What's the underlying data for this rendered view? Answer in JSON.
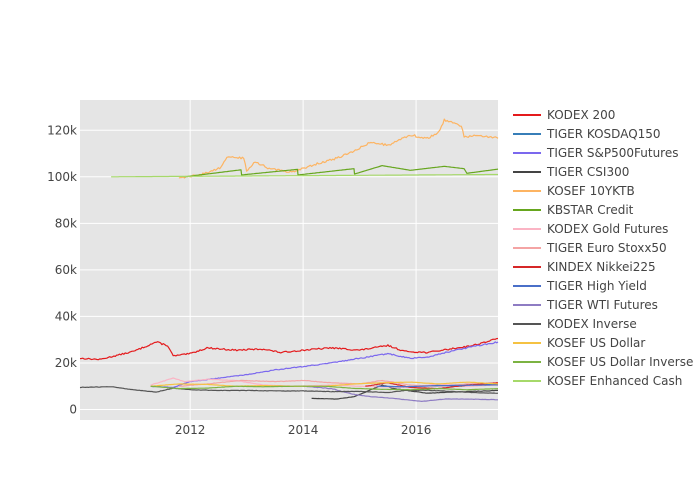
{
  "chart_data": {
    "type": "line",
    "title": "",
    "xlabel": "",
    "ylabel": "",
    "x_range": [
      2010.05,
      2017.45
    ],
    "ylim": [
      -4500,
      133000
    ],
    "x_ticks": [
      {
        "value": 2012,
        "label": "2012"
      },
      {
        "value": 2014,
        "label": "2014"
      },
      {
        "value": 2016,
        "label": "2016"
      }
    ],
    "y_ticks": [
      {
        "value": 0,
        "label": "0"
      },
      {
        "value": 20000,
        "label": "20k"
      },
      {
        "value": 40000,
        "label": "40k"
      },
      {
        "value": 60000,
        "label": "60k"
      },
      {
        "value": 80000,
        "label": "80k"
      },
      {
        "value": 100000,
        "label": "100k"
      },
      {
        "value": 120000,
        "label": "120k"
      }
    ],
    "grid": true,
    "legend_position": "right",
    "plot_background": "#e5e5e5",
    "series": [
      {
        "name": "KODEX 200",
        "color": "#e41a1c",
        "noise": 0.012,
        "points": [
          [
            2010.05,
            22000
          ],
          [
            2010.4,
            21500
          ],
          [
            2011.0,
            25000
          ],
          [
            2011.4,
            29000
          ],
          [
            2011.6,
            27500
          ],
          [
            2011.7,
            23000
          ],
          [
            2012.0,
            24000
          ],
          [
            2012.3,
            26500
          ],
          [
            2012.8,
            25500
          ],
          [
            2013.3,
            26000
          ],
          [
            2013.6,
            24500
          ],
          [
            2014.0,
            25500
          ],
          [
            2014.5,
            26500
          ],
          [
            2015.0,
            25500
          ],
          [
            2015.5,
            27500
          ],
          [
            2015.8,
            25000
          ],
          [
            2016.2,
            24500
          ],
          [
            2016.6,
            26000
          ],
          [
            2017.0,
            27500
          ],
          [
            2017.45,
            30500
          ]
        ]
      },
      {
        "name": "TIGER KOSDAQ150",
        "color": "#377eb8",
        "noise": 0.004,
        "points": [
          [
            2015.4,
            10000
          ],
          [
            2015.8,
            9500
          ],
          [
            2016.3,
            10500
          ],
          [
            2016.8,
            10000
          ],
          [
            2017.45,
            11000
          ]
        ]
      },
      {
        "name": "TIGER S&P500Futures",
        "color": "#7b68ee",
        "noise": 0.01,
        "points": [
          [
            2011.3,
            10000
          ],
          [
            2011.7,
            9500
          ],
          [
            2012.0,
            12000
          ],
          [
            2012.5,
            13500
          ],
          [
            2013.0,
            15000
          ],
          [
            2013.5,
            17000
          ],
          [
            2014.0,
            18500
          ],
          [
            2014.5,
            20000
          ],
          [
            2015.0,
            22000
          ],
          [
            2015.5,
            24000
          ],
          [
            2015.9,
            22000
          ],
          [
            2016.2,
            22500
          ],
          [
            2016.6,
            25000
          ],
          [
            2017.0,
            27000
          ],
          [
            2017.45,
            29000
          ]
        ]
      },
      {
        "name": "TIGER CSI300",
        "color": "#444444",
        "noise": 0.012,
        "points": [
          [
            2014.15,
            4800
          ],
          [
            2014.6,
            4500
          ],
          [
            2014.9,
            5500
          ],
          [
            2015.4,
            10500
          ],
          [
            2015.6,
            9000
          ],
          [
            2015.9,
            8000
          ],
          [
            2016.2,
            7000
          ],
          [
            2016.6,
            7500
          ],
          [
            2017.0,
            7800
          ],
          [
            2017.45,
            8200
          ]
        ]
      },
      {
        "name": "KOSEF 10YKTB",
        "color": "#fdb462",
        "noise": 0.004,
        "points": [
          [
            2011.8,
            99500
          ],
          [
            2012.2,
            101000
          ],
          [
            2012.55,
            104000
          ],
          [
            2012.65,
            108500
          ],
          [
            2012.95,
            108000
          ],
          [
            2013.0,
            102500
          ],
          [
            2013.15,
            106500
          ],
          [
            2013.4,
            103500
          ],
          [
            2013.8,
            102000
          ],
          [
            2014.3,
            106000
          ],
          [
            2014.6,
            108000
          ],
          [
            2014.9,
            111000
          ],
          [
            2015.2,
            115000
          ],
          [
            2015.5,
            113500
          ],
          [
            2015.9,
            118000
          ],
          [
            2016.2,
            116500
          ],
          [
            2016.4,
            119000
          ],
          [
            2016.5,
            124500
          ],
          [
            2016.8,
            122000
          ],
          [
            2016.85,
            117000
          ],
          [
            2017.1,
            118000
          ],
          [
            2017.45,
            116500
          ]
        ]
      },
      {
        "name": "KBSTAR Credit",
        "color": "#66a61e",
        "noise": 0,
        "points": [
          [
            2011.9,
            100000
          ],
          [
            2012.9,
            103000
          ],
          [
            2012.91,
            100800
          ],
          [
            2013.9,
            103200
          ],
          [
            2013.91,
            100800
          ],
          [
            2014.9,
            103500
          ],
          [
            2014.91,
            101200
          ],
          [
            2015.4,
            104800
          ],
          [
            2015.9,
            102800
          ],
          [
            2016.5,
            104500
          ],
          [
            2016.85,
            103500
          ],
          [
            2016.9,
            101500
          ],
          [
            2017.45,
            103300
          ]
        ]
      },
      {
        "name": "KODEX Gold Futures",
        "color": "#fbb4c4",
        "noise": 0.008,
        "points": [
          [
            2011.3,
            10500
          ],
          [
            2011.7,
            13500
          ],
          [
            2011.9,
            12000
          ],
          [
            2012.3,
            13000
          ],
          [
            2012.8,
            12500
          ],
          [
            2013.3,
            10500
          ],
          [
            2013.9,
            10000
          ],
          [
            2014.5,
            10500
          ],
          [
            2015.0,
            10000
          ],
          [
            2015.9,
            9500
          ],
          [
            2016.4,
            11000
          ],
          [
            2016.9,
            10000
          ],
          [
            2017.45,
            10500
          ]
        ]
      },
      {
        "name": "TIGER Euro Stoxx50",
        "color": "#f4a4a4",
        "noise": 0.008,
        "points": [
          [
            2011.8,
            10000
          ],
          [
            2012.3,
            11000
          ],
          [
            2012.9,
            12500
          ],
          [
            2013.5,
            12000
          ],
          [
            2014.0,
            12500
          ],
          [
            2014.5,
            11500
          ],
          [
            2015.0,
            11000
          ],
          [
            2015.4,
            12500
          ],
          [
            2015.9,
            10500
          ],
          [
            2016.4,
            10000
          ],
          [
            2016.9,
            11000
          ],
          [
            2017.45,
            11500
          ]
        ]
      },
      {
        "name": "KINDEX Nikkei225",
        "color": "#d62728",
        "noise": 0.008,
        "points": [
          [
            2015.1,
            10000
          ],
          [
            2015.5,
            11500
          ],
          [
            2015.9,
            9500
          ],
          [
            2016.4,
            9000
          ],
          [
            2016.9,
            10500
          ],
          [
            2017.45,
            11500
          ]
        ]
      },
      {
        "name": "TIGER High Yield",
        "color": "#4a6fc8",
        "noise": 0.003,
        "points": [
          [
            2015.3,
            10000
          ],
          [
            2015.8,
            9800
          ],
          [
            2016.3,
            10200
          ],
          [
            2016.8,
            10400
          ],
          [
            2017.45,
            10600
          ]
        ]
      },
      {
        "name": "TIGER WTI Futures",
        "color": "#8e7cc3",
        "noise": 0.015,
        "points": [
          [
            2014.0,
            10000
          ],
          [
            2014.5,
            9000
          ],
          [
            2014.9,
            6500
          ],
          [
            2015.2,
            5500
          ],
          [
            2015.5,
            5000
          ],
          [
            2015.9,
            4000
          ],
          [
            2016.1,
            3500
          ],
          [
            2016.5,
            4500
          ],
          [
            2016.9,
            4500
          ],
          [
            2017.45,
            4200
          ]
        ]
      },
      {
        "name": "KODEX Inverse",
        "color": "#555555",
        "noise": 0.01,
        "points": [
          [
            2010.05,
            9500
          ],
          [
            2010.6,
            9800
          ],
          [
            2011.0,
            8500
          ],
          [
            2011.4,
            7500
          ],
          [
            2011.7,
            9200
          ],
          [
            2012.0,
            8500
          ],
          [
            2012.5,
            8200
          ],
          [
            2013.0,
            8200
          ],
          [
            2013.5,
            8000
          ],
          [
            2014.0,
            8000
          ],
          [
            2014.5,
            7700
          ],
          [
            2015.0,
            7800
          ],
          [
            2015.5,
            7300
          ],
          [
            2015.8,
            8200
          ],
          [
            2016.2,
            8300
          ],
          [
            2016.6,
            7800
          ],
          [
            2017.0,
            7300
          ],
          [
            2017.45,
            7000
          ]
        ]
      },
      {
        "name": "KOSEF US Dollar",
        "color": "#f5c242",
        "noise": 0.004,
        "points": [
          [
            2011.3,
            10000
          ],
          [
            2011.8,
            11000
          ],
          [
            2012.3,
            10800
          ],
          [
            2012.8,
            10000
          ],
          [
            2013.3,
            10300
          ],
          [
            2013.8,
            10000
          ],
          [
            2014.4,
            10000
          ],
          [
            2014.9,
            11000
          ],
          [
            2015.4,
            11500
          ],
          [
            2015.9,
            11800
          ],
          [
            2016.4,
            11000
          ],
          [
            2016.9,
            11800
          ],
          [
            2017.45,
            11000
          ]
        ]
      },
      {
        "name": "KOSEF US Dollar Inverse",
        "color": "#7cb342",
        "noise": 0.004,
        "points": [
          [
            2011.3,
            10000
          ],
          [
            2011.8,
            9000
          ],
          [
            2012.3,
            9200
          ],
          [
            2012.8,
            10000
          ],
          [
            2013.3,
            9800
          ],
          [
            2013.8,
            10000
          ],
          [
            2014.4,
            10000
          ],
          [
            2014.9,
            9100
          ],
          [
            2015.4,
            8700
          ],
          [
            2015.9,
            8500
          ],
          [
            2016.4,
            9000
          ],
          [
            2016.9,
            8500
          ],
          [
            2017.45,
            9000
          ]
        ]
      },
      {
        "name": "KOSEF Enhanced Cash",
        "color": "#a6d96a",
        "noise": 0,
        "points": [
          [
            2010.6,
            100000
          ],
          [
            2017.45,
            101000
          ]
        ]
      }
    ]
  }
}
